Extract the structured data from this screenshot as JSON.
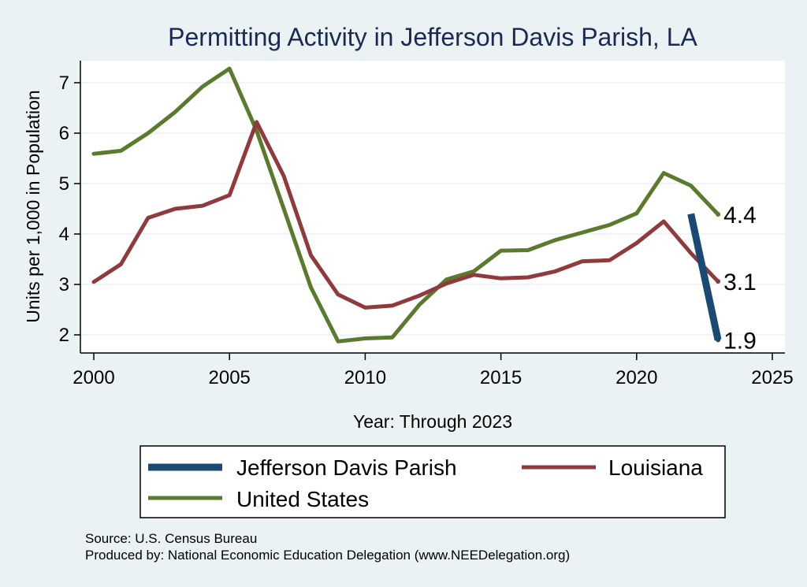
{
  "chart_data": {
    "type": "line",
    "title": "Permitting Activity in Jefferson Davis Parish, LA",
    "xlabel": "Year: Through 2023",
    "ylabel": "Units per 1,000 in Population",
    "xlim": [
      2000,
      2025
    ],
    "ylim": [
      1.65,
      7.4
    ],
    "x_ticks": [
      "2000",
      "2005",
      "2010",
      "2015",
      "2020",
      "2025"
    ],
    "y_ticks": [
      "2",
      "3",
      "4",
      "5",
      "6",
      "7"
    ],
    "series": [
      {
        "name": "Jefferson Davis Parish",
        "color": "#1a4a73",
        "x": [
          2022,
          2023
        ],
        "values": [
          4.4,
          1.9
        ],
        "end_label": "1.9"
      },
      {
        "name": "Louisiana",
        "color": "#903a3d",
        "x": [
          2000,
          2001,
          2002,
          2003,
          2004,
          2005,
          2006,
          2007,
          2008,
          2009,
          2010,
          2011,
          2012,
          2013,
          2014,
          2015,
          2016,
          2017,
          2018,
          2019,
          2020,
          2021,
          2022,
          2023
        ],
        "values": [
          3.05,
          3.4,
          4.32,
          4.5,
          4.56,
          4.77,
          6.22,
          5.15,
          3.58,
          2.8,
          2.54,
          2.58,
          2.78,
          3.02,
          3.19,
          3.12,
          3.14,
          3.26,
          3.46,
          3.48,
          3.82,
          4.25,
          3.62,
          3.06
        ],
        "end_label": "3.1"
      },
      {
        "name": "United States",
        "color": "#5a7a2e",
        "x": [
          2000,
          2001,
          2002,
          2003,
          2004,
          2005,
          2006,
          2007,
          2008,
          2009,
          2010,
          2011,
          2012,
          2013,
          2014,
          2015,
          2016,
          2017,
          2018,
          2019,
          2020,
          2021,
          2022,
          2023
        ],
        "values": [
          5.59,
          5.65,
          6.0,
          6.42,
          6.92,
          7.28,
          6.05,
          4.5,
          2.94,
          1.87,
          1.93,
          1.95,
          2.6,
          3.1,
          3.26,
          3.67,
          3.68,
          3.88,
          4.03,
          4.18,
          4.41,
          5.21,
          4.96,
          4.39
        ],
        "end_label": "4.4"
      }
    ],
    "legend": {
      "position": "bottom",
      "entries": [
        "Jefferson Davis Parish",
        "Louisiana",
        "United States"
      ]
    },
    "source": "Source: U.S. Census Bureau",
    "produced_by": "Produced by: National Economic Education Delegation (www.NEEDelegation.org)"
  }
}
